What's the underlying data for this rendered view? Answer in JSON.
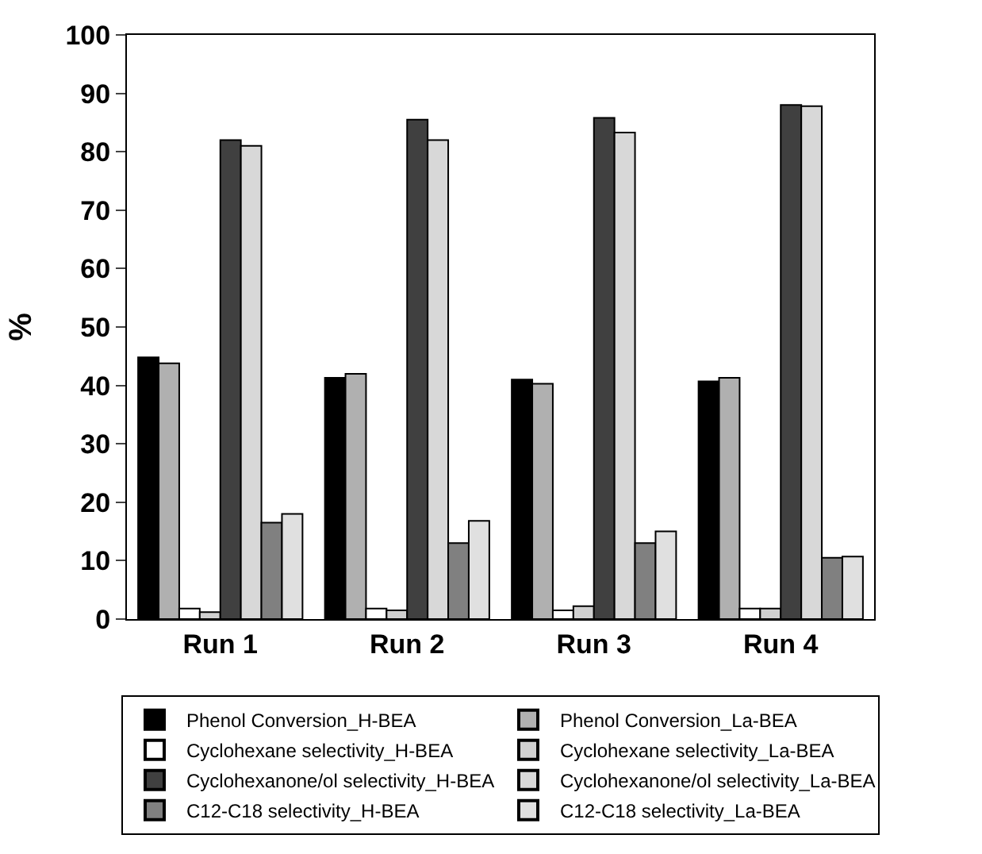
{
  "chart_data": {
    "type": "bar",
    "ylabel": "%",
    "categories": [
      "Run 1",
      "Run 2",
      "Run 3",
      "Run 4"
    ],
    "ylim": [
      0,
      100
    ],
    "yticks": [
      0,
      10,
      20,
      30,
      40,
      50,
      60,
      70,
      80,
      90,
      100
    ],
    "legend": "bottom",
    "series": [
      {
        "name": "Phenol Conversion_H-BEA",
        "color": "#000000",
        "values": [
          44.8,
          41.3,
          41,
          40.7
        ]
      },
      {
        "name": "Phenol Conversion_La-BEA",
        "color": "#b0b0b0",
        "values": [
          43.8,
          42,
          40.3,
          41.3
        ]
      },
      {
        "name": "Cyclohexane selectivity_H-BEA",
        "color": "#ffffff",
        "values": [
          1.8,
          1.8,
          1.5,
          1.8
        ]
      },
      {
        "name": "Cyclohexane selectivity_La-BEA",
        "color": "#d0d0d0",
        "values": [
          1.2,
          1.5,
          2.2,
          1.8
        ]
      },
      {
        "name": "Cyclohexanone/ol selectivity_H-BEA",
        "color": "#404040",
        "values": [
          82,
          85.5,
          85.8,
          88
        ]
      },
      {
        "name": "Cyclohexanone/ol selectivity_La-BEA",
        "color": "#d8d8d8",
        "values": [
          81,
          82,
          83.3,
          87.8
        ]
      },
      {
        "name": "C12-C18 selectivity_H-BEA",
        "color": "#808080",
        "values": [
          16.5,
          13,
          13,
          10.5
        ]
      },
      {
        "name": "C12-C18 selectivity_La-BEA",
        "color": "#e0e0e0",
        "values": [
          18,
          16.8,
          15,
          10.7
        ]
      }
    ]
  }
}
